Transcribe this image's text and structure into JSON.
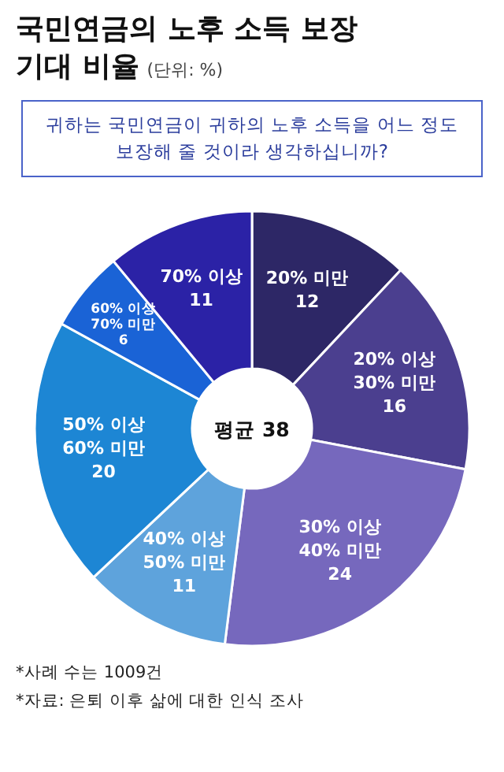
{
  "chart_data": {
    "type": "donut",
    "title": "국민연금의 노후 소득 보장 기대 비율",
    "subtitle": "귀하는 국민연금이 귀하의 노후 소득을 어느 정도 보장해 줄 것이라 생각하십니까?",
    "categories": [
      "20% 미만",
      "20% 이상 30% 미만",
      "30% 이상 40% 미만",
      "40% 이상 50% 미만",
      "50% 이상 60% 미만",
      "60% 이상 70% 미만",
      "70% 이상"
    ],
    "values": [
      12,
      16,
      24,
      11,
      20,
      6,
      11
    ],
    "colors": [
      "#2d2766",
      "#4b3f8f",
      "#7668bd",
      "#5ea3dc",
      "#1d86d4",
      "#1a63d6",
      "#2b22a6"
    ],
    "data_labels": true,
    "annotations": [
      "(단위: %)",
      "평균 38",
      "*사례 수는 1009건",
      "*자료: 은퇴 이후 삶에 대한 인식 조사"
    ]
  }
}
